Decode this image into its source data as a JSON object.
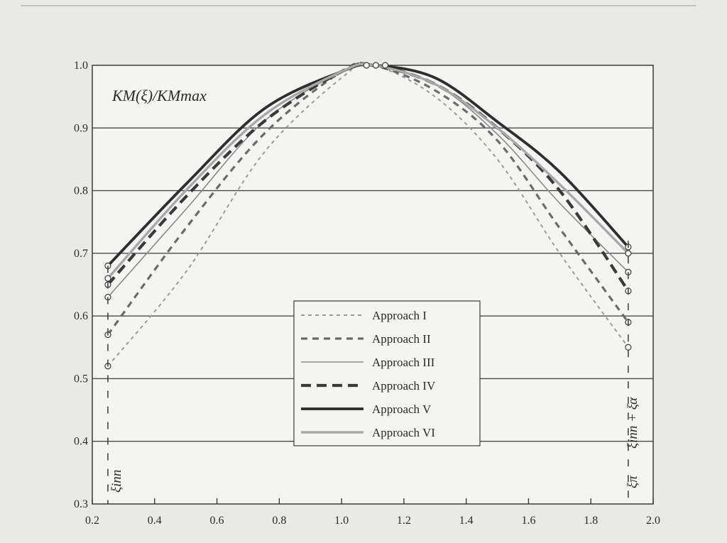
{
  "chart_data": {
    "type": "line",
    "title": "",
    "ylabel": "KM(ξ)/KMmax",
    "xlabel": "",
    "xlim": [
      0.2,
      2.0
    ],
    "ylim": [
      0.3,
      1.0
    ],
    "x_ticks": [
      "0.2",
      "0.4",
      "0.6",
      "0.8",
      "1.0",
      "1.2",
      "1.4",
      "1.6",
      "1.8",
      "2.0"
    ],
    "y_ticks": [
      "0.3",
      "0.4",
      "0.5",
      "0.6",
      "0.7",
      "0.8",
      "0.9",
      "1.0"
    ],
    "grid": "horizontal",
    "legend_position": "center-right",
    "series": [
      {
        "name": "Approach I",
        "style": "fine-dash",
        "color": "#9a9a9a",
        "x": [
          0.25,
          0.5,
          0.75,
          1.0,
          1.1,
          1.3,
          1.5,
          1.7,
          1.92
        ],
        "y": [
          0.52,
          0.67,
          0.86,
          0.98,
          1.0,
          0.95,
          0.85,
          0.7,
          0.55
        ]
      },
      {
        "name": "Approach II",
        "style": "medium-dash",
        "color": "#6a6a6a",
        "x": [
          0.25,
          0.5,
          0.75,
          1.0,
          1.1,
          1.3,
          1.5,
          1.7,
          1.92
        ],
        "y": [
          0.57,
          0.74,
          0.89,
          0.99,
          1.0,
          0.96,
          0.88,
          0.74,
          0.59
        ]
      },
      {
        "name": "Approach III",
        "style": "thin-solid",
        "color": "#8a8a8a",
        "x": [
          0.25,
          0.5,
          0.75,
          1.0,
          1.1,
          1.3,
          1.5,
          1.7,
          1.92
        ],
        "y": [
          0.63,
          0.77,
          0.91,
          0.99,
          1.0,
          0.97,
          0.89,
          0.78,
          0.67
        ]
      },
      {
        "name": "Approach IV",
        "style": "bold-dash",
        "color": "#3a3a3a",
        "x": [
          0.25,
          0.5,
          0.75,
          1.0,
          1.1,
          1.3,
          1.5,
          1.7,
          1.92
        ],
        "y": [
          0.65,
          0.79,
          0.91,
          0.99,
          1.0,
          0.97,
          0.9,
          0.8,
          0.64
        ]
      },
      {
        "name": "Approach V",
        "style": "bold-solid",
        "color": "#2e2e2e",
        "x": [
          0.25,
          0.5,
          0.75,
          1.0,
          1.1,
          1.3,
          1.5,
          1.7,
          1.92
        ],
        "y": [
          0.68,
          0.81,
          0.93,
          0.99,
          1.0,
          0.98,
          0.91,
          0.83,
          0.71
        ]
      },
      {
        "name": "Approach VI",
        "style": "gray-solid",
        "color": "#a8a8a8",
        "x": [
          0.25,
          0.5,
          0.75,
          1.0,
          1.1,
          1.3,
          1.5,
          1.7,
          1.92
        ],
        "y": [
          0.66,
          0.8,
          0.92,
          0.99,
          1.0,
          0.97,
          0.9,
          0.81,
          0.7
        ]
      }
    ],
    "annotations": [
      {
        "text": "ξinn",
        "x": 0.25
      },
      {
        "text": "ξinn + ξα",
        "x": 1.92
      },
      {
        "text": "ξπ",
        "x": 1.92
      }
    ]
  }
}
